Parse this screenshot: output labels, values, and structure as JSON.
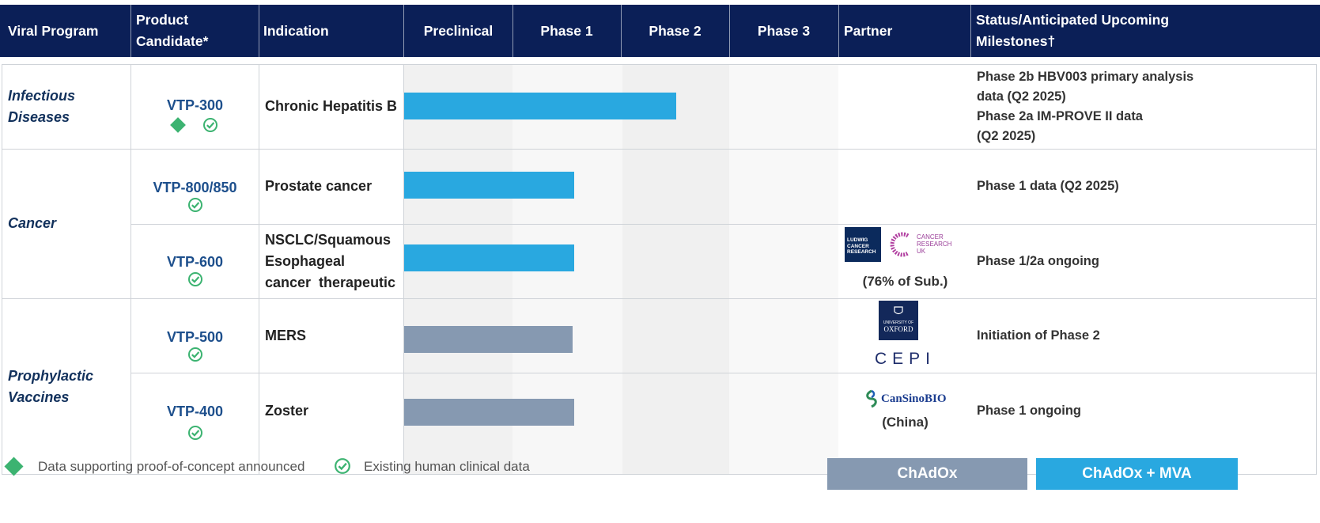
{
  "header": {
    "viral_program": "Viral Program",
    "product_candidate": "Product Candidate*",
    "indication": "Indication",
    "preclinical": "Preclinical",
    "phase1": "Phase 1",
    "phase2": "Phase 2",
    "phase3": "Phase 3",
    "partner": "Partner",
    "status": "Status/Anticipated Upcoming Milestones†"
  },
  "programs": {
    "infectious": "Infectious Diseases",
    "cancer": "Cancer",
    "prophylactic": "Prophylactic Vaccines"
  },
  "rows": [
    {
      "candidate": "VTP-300",
      "indication": "Chronic Hepatitis B",
      "status_lines": [
        "Phase 2b HBV003 primary analysis",
        "data (Q2 2025)",
        "Phase 2a IM-PROVE II data",
        "(Q2 2025)"
      ]
    },
    {
      "candidate": "VTP-800/850",
      "indication": "Prostate cancer",
      "status_lines": [
        "Phase 1 data (Q2 2025)"
      ]
    },
    {
      "candidate": "VTP-600",
      "indication_lines": [
        "NSCLC/Squamous",
        "Esophageal",
        "cancer  therapeutic"
      ],
      "status_lines": [
        "Phase 1/2a ongoing"
      ]
    },
    {
      "candidate": "VTP-500",
      "indication": "MERS",
      "status_lines": [
        "Initiation of Phase 2"
      ]
    },
    {
      "candidate": "VTP-400",
      "indication": "Zoster",
      "status_lines": [
        "Phase 1 ongoing"
      ]
    }
  ],
  "partners": {
    "ludwig_logo_lines": [
      "LUDWIG",
      "CANCER",
      "RESEARCH"
    ],
    "cruk_logo_lines": [
      "CANCER",
      "RESEARCH",
      "UK"
    ],
    "vtp600_note": "(76% of Sub.)",
    "oxford_lines": [
      "UNIVERSITY OF",
      "OXFORD"
    ],
    "cepi": "CEPI",
    "cansino": "CanSinoBIO",
    "vtp400_note": "(China)"
  },
  "legend": {
    "poc": "Data supporting proof-of-concept announced",
    "clinical": "Existing human clinical data",
    "chadox": "ChAdOx",
    "chadox_mva": "ChAdOx + MVA"
  },
  "colors": {
    "header_bg": "#0b1f57",
    "chadox": "#8699b1",
    "chadox_mva": "#29a8e0",
    "check_green": "#3cb371",
    "candidate_blue": "#1d4f8c"
  },
  "chart_data": {
    "type": "bar",
    "orientation": "horizontal",
    "stages": [
      "Preclinical",
      "Phase 1",
      "Phase 2",
      "Phase 3"
    ],
    "items": [
      {
        "candidate": "VTP-300",
        "progress_stages": 2.5,
        "platform": "ChAdOx + MVA",
        "poc_announced": true,
        "human_clinical_data": true
      },
      {
        "candidate": "VTP-800/850",
        "progress_stages": 1.56,
        "platform": "ChAdOx + MVA",
        "poc_announced": false,
        "human_clinical_data": true
      },
      {
        "candidate": "VTP-600",
        "progress_stages": 1.56,
        "platform": "ChAdOx + MVA",
        "poc_announced": false,
        "human_clinical_data": true
      },
      {
        "candidate": "VTP-500",
        "progress_stages": 1.55,
        "platform": "ChAdOx",
        "poc_announced": false,
        "human_clinical_data": true
      },
      {
        "candidate": "VTP-400",
        "progress_stages": 1.56,
        "platform": "ChAdOx",
        "poc_announced": false,
        "human_clinical_data": true
      }
    ]
  }
}
